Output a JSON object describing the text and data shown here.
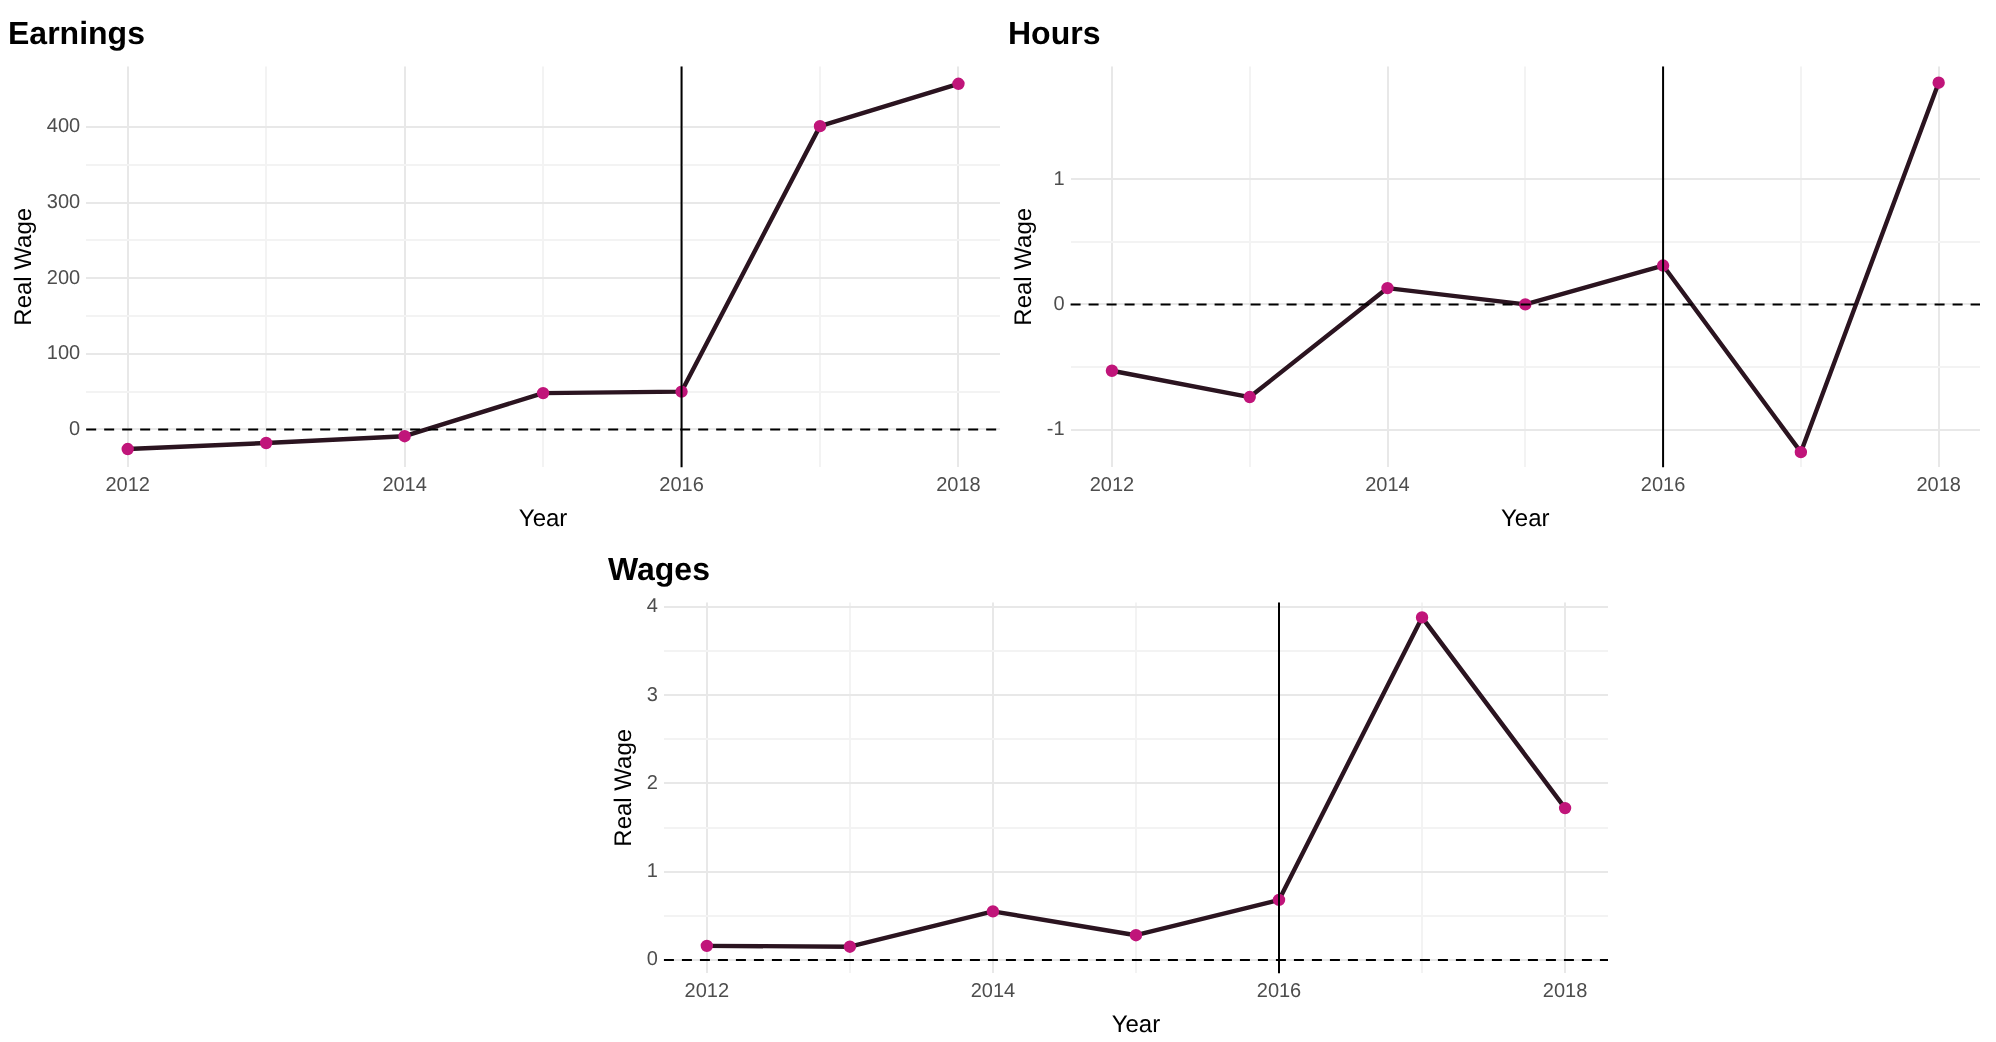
{
  "chart_data": [
    {
      "type": "line",
      "title": "Earnings",
      "xlabel": "Year",
      "ylabel": "Real Wage",
      "x": [
        2012,
        2013,
        2014,
        2015,
        2016,
        2017,
        2018
      ],
      "series": [
        {
          "color": "#2b1420",
          "values": [
            -26,
            -18,
            -9,
            48,
            50,
            401,
            457
          ]
        }
      ],
      "xlim": [
        2011.7,
        2018.3
      ],
      "xticks": [
        2012,
        2014,
        2016,
        2018
      ],
      "ylim": [
        -50,
        480
      ],
      "yticks": [
        0,
        100,
        200,
        300,
        400
      ],
      "ref_lines": [
        {
          "axis": "x",
          "value": 2016,
          "line_style": "solid"
        },
        {
          "axis": "y",
          "value": 0,
          "line_style": "dashed"
        }
      ],
      "grid": true,
      "legend": false,
      "marker": "circle",
      "line_style": "solid"
    },
    {
      "type": "line",
      "title": "Hours",
      "xlabel": "Year",
      "ylabel": "Real Wage",
      "x": [
        2012,
        2013,
        2014,
        2015,
        2016,
        2017,
        2018
      ],
      "series": [
        {
          "color": "#2b1420",
          "values": [
            -0.53,
            -0.74,
            0.13,
            0,
            0.31,
            -1.18,
            1.77
          ]
        }
      ],
      "xlim": [
        2011.7,
        2018.3
      ],
      "xticks": [
        2012,
        2014,
        2016,
        2018
      ],
      "ylim": [
        -1.3,
        1.9
      ],
      "yticks": [
        -1,
        0,
        1
      ],
      "ref_lines": [
        {
          "axis": "x",
          "value": 2016,
          "line_style": "solid"
        },
        {
          "axis": "y",
          "value": 0,
          "line_style": "dashed"
        }
      ],
      "grid": true,
      "legend": false,
      "marker": "circle",
      "line_style": "solid"
    },
    {
      "type": "line",
      "title": "Wages",
      "xlabel": "Year",
      "ylabel": "Real Wage",
      "x": [
        2012,
        2013,
        2014,
        2015,
        2016,
        2017,
        2018
      ],
      "series": [
        {
          "color": "#2b1420",
          "values": [
            0.16,
            0.15,
            0.55,
            0.28,
            0.68,
            3.88,
            1.72
          ]
        }
      ],
      "xlim": [
        2011.7,
        2018.3
      ],
      "xticks": [
        2012,
        2014,
        2016,
        2018
      ],
      "ylim": [
        -0.15,
        4.05
      ],
      "yticks": [
        0,
        1,
        2,
        3,
        4
      ],
      "ref_lines": [
        {
          "axis": "x",
          "value": 2016,
          "line_style": "solid"
        },
        {
          "axis": "y",
          "value": 0,
          "line_style": "dashed"
        }
      ],
      "grid": true,
      "legend": false,
      "marker": "circle",
      "line_style": "solid"
    }
  ]
}
